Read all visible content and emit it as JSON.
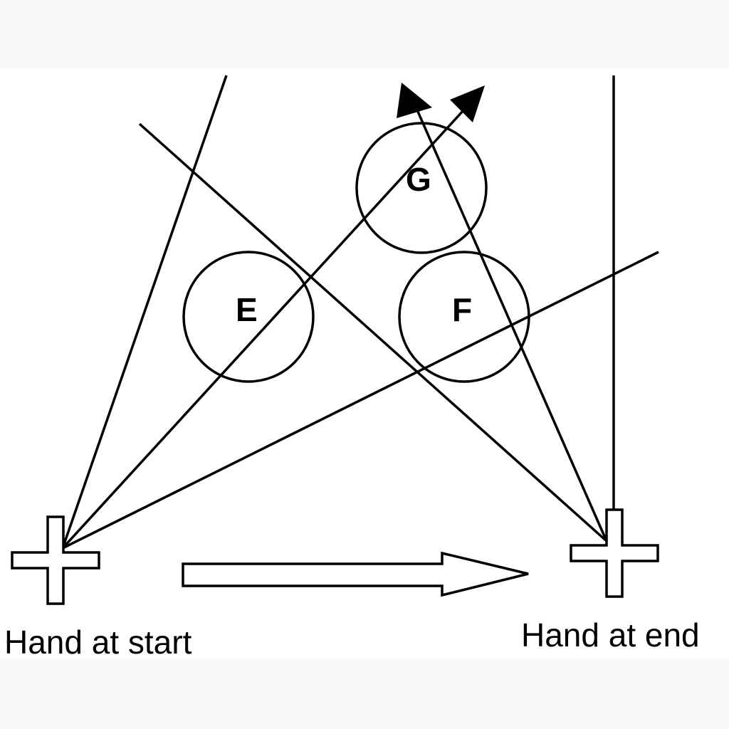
{
  "diagram": {
    "circles": [
      {
        "id": "E",
        "label": "E"
      },
      {
        "id": "F",
        "label": "F"
      },
      {
        "id": "G",
        "label": "G"
      }
    ],
    "hands": {
      "start_label": "Hand at start",
      "end_label": "Hand at end"
    },
    "colors": {
      "ink": "#000000",
      "panel": "#ffffff",
      "page": "#f9f9f9"
    }
  }
}
